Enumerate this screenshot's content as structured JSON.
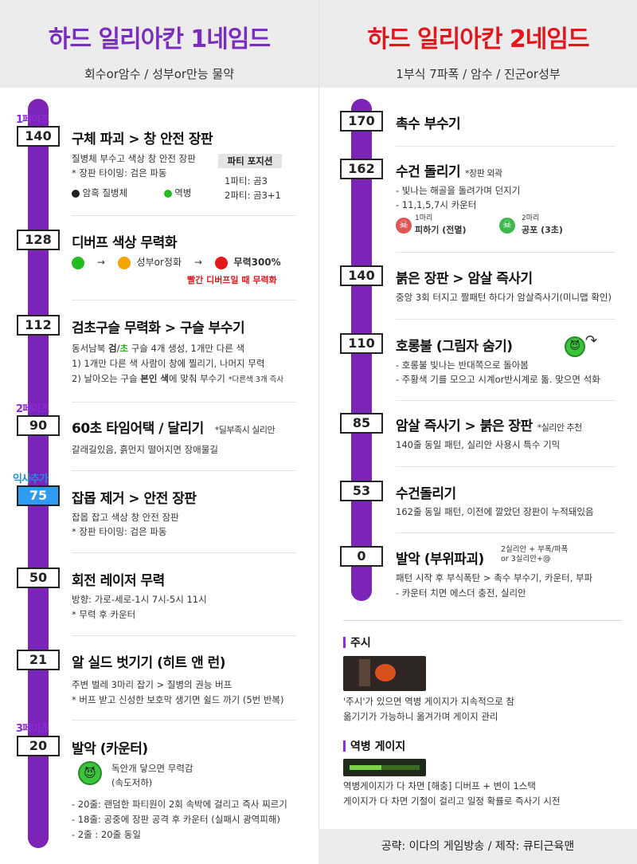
{
  "left": {
    "title": "하드 일리아칸 1네임드",
    "subtitle": "회수or암수 / 성부or만능 물약",
    "phase1": "1페이즈",
    "phase2": "2페이즈",
    "phase_extra": "익사추가",
    "phase3": "3페이즈",
    "s140": {
      "level": "140",
      "title": "구체 파괴 > 창 안전 장판",
      "l1": "질병체 부수고 색상 창 안전 장판",
      "l2": "* 장판 타이밍: 검은 파동",
      "legend_a": "암흑 질병체",
      "legend_b": "역병",
      "party_box": "파티 포지션",
      "party1": "1파티: 곰3",
      "party2": "2파티: 곰3+1"
    },
    "s128": {
      "level": "128",
      "title": "디버프 색상 무력화",
      "mid": "성부or정화",
      "end": "무력300%",
      "note": "빨간 디버프일 때 무력화"
    },
    "s112": {
      "level": "112",
      "title": "검초구슬 무력화 > 구슬 부수기",
      "l1a": "동서남북 ",
      "l1b": "검",
      "l1c": "/",
      "l1d": "초",
      "l1e": " 구슬 4개 생성, 1개만 다른 색",
      "l2": "1) 1개만 다른 색 사람이 창에 찔리기, 나머지 무력",
      "l3a": "2) 날아오는 구슬 ",
      "l3b": "본인 색",
      "l3c": "에 맞춰 부수기",
      "l3note": "*다른색 3개 즉사"
    },
    "s90": {
      "level": "90",
      "title": "60초 타임어택 / 달리기",
      "note": "*딜부족시 실리안",
      "l1": "갈래길있음, 흙먼지 떨어지면 장애물길"
    },
    "s75": {
      "level": "75",
      "title": "잡몹 제거 > 안전 장판",
      "l1": "잡몹 잡고 색상 창 안전 장판",
      "l2": "* 장판 타이밍: 검은 파동"
    },
    "s50": {
      "level": "50",
      "title": "회전 레이저 무력",
      "l1": "방향: 가로-세로-1시 7시-5시 11시",
      "l2": "* 무력 후 카운터"
    },
    "s21": {
      "level": "21",
      "title": "알 실드 벗기기 (히트 앤 런)",
      "l1": "주변 벌레 3마리 잡기 > 질병의 권능 버프",
      "l2": "* 버프 받고 신성한 보호막 생기면 쉴드 까기 (5번 반복)"
    },
    "s20": {
      "level": "20",
      "title": "발악 (카운터)",
      "i1": "독안개 닿으면 무력감",
      "i2": "(속도저하)",
      "l1": "- 20줄: 랜덤한 파티원이 2회 속박에 걸리고 즉사 찌르기",
      "l2": "- 18줄: 공중에 장판 공격 후 카운터 (실패시 광역피해)",
      "l3": "- 2줄  : 20줄 동일"
    }
  },
  "right": {
    "title": "하드 일리아칸 2네임드",
    "subtitle": "1부식 7파폭 / 암수 / 진군or성부",
    "s170": {
      "level": "170",
      "title": "촉수 부수기"
    },
    "s162": {
      "level": "162",
      "title": "수건 돌리기",
      "note": "*장판 외곽",
      "l1": "- 빛나는 해골을 돌려가며 던지기",
      "l2": "- 11,1,5,7시 카운터",
      "a_small": "1마리",
      "a_label": "피하기 (전멸)",
      "b_small": "2마리",
      "b_label": "공포 (3초)"
    },
    "s140": {
      "level": "140",
      "title": "붉은 장판 > 암살 즉사기",
      "l1": "중앙 3회 터지고 짤패턴 하다가 암살즉사기(미니맵 확인)"
    },
    "s110": {
      "level": "110",
      "title": "호롱불 (그림자 숨기)",
      "l1": "- 호롱불 빛나는 반대쪽으로 돌아봄",
      "l2": "- 주황색 기를 모으고 시계or반시계로 돎. 맞으면 석화"
    },
    "s85": {
      "level": "85",
      "title": "암살 즉사기 > 붉은 장판",
      "note": "*실리안 추천",
      "l1": "140줄 동일 패턴, 실리안 사용시 특수 기믹"
    },
    "s53": {
      "level": "53",
      "title": "수건돌리기",
      "l1": "162줄 동일 패턴, 이전에 깔았던 장판이 누적돼있음"
    },
    "s0": {
      "level": "0",
      "title": "발악 (부위파괴)",
      "note1": "2실리안 + 부폭/파폭",
      "note2": "or 3실리안+@",
      "l1": "패턴 시작 후 부식폭탄 > 촉수 부수기, 카운터, 부파",
      "l2": "- 카운터 치면 에스더 충전, 실리안"
    },
    "jusi": {
      "title": "주시",
      "l1": "'주시'가 있으면 역병 게이지가 지속적으로 참",
      "l2": "옮기기가 가능하니 옮겨가며 게이지 관리"
    },
    "gauge": {
      "title": "역병 게이지",
      "l1": "역병게이지가 다 차면 [해충] 디버프 + 변이  1스택",
      "l2": "게이지가 다 차면 기절이 걸리고 일정 확률로 즉사기 시전"
    }
  },
  "footer": "공략: 이다의 게임방송 / 제작: 큐티근육맨",
  "colors": {
    "purple": "#7b24b8",
    "red": "#e3161c",
    "green": "#22bb22",
    "orange": "#f5a300",
    "blue": "#2d9cf0"
  }
}
